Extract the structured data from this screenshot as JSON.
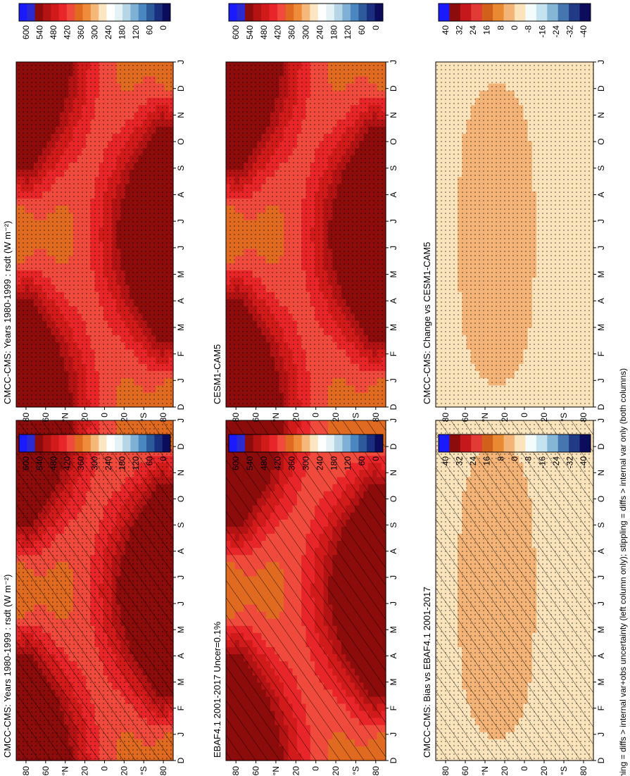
{
  "footer_note": "hatching = diffs > internal var+obs uncertainty (left column only); stippling = diffs > internal var only (both columns)",
  "colors": {
    "climatology_scale": [
      "#0b0d5c",
      "#1b2f80",
      "#2c5a9a",
      "#4a86bf",
      "#7fb1d6",
      "#b4d6e6",
      "#e4f2f6",
      "#ffffff",
      "#fbe6c2",
      "#f5b87a",
      "#ee8c3c",
      "#e06a20",
      "#f04a3c",
      "#e8262a",
      "#d11a1a",
      "#b41314",
      "#8c0c0c",
      "#2a2ad0",
      "#1a1aff"
    ],
    "difference_scale": [
      "#0b0d5c",
      "#213a86",
      "#4576b0",
      "#85b6d6",
      "#c4e3ee",
      "#f4fbfb",
      "#fbe4bc",
      "#f5b477",
      "#e98a32",
      "#d1611a",
      "#e23b36",
      "#c4181c",
      "#8c0c0c",
      "#1a1aff"
    ]
  },
  "chart_data": [
    {
      "type": "heatmap",
      "title": "CMCC-CMS: Years 1980-1999 : rsdt (W m⁻²)",
      "x": [
        "D",
        "J",
        "F",
        "M",
        "A",
        "M",
        "J",
        "J",
        "A",
        "S",
        "O",
        "N",
        "D",
        "J"
      ],
      "y": [
        "80",
        "60",
        "°N",
        "20",
        "0",
        "20",
        "°S",
        "80"
      ],
      "colorbar_ticks": [
        "600",
        "540",
        "480",
        "420",
        "360",
        "300",
        "240",
        "180",
        "120",
        "60",
        "0"
      ],
      "hatching": true,
      "stippling": true
    },
    {
      "type": "heatmap",
      "title": "CMCC-CMS: Years 1980-1999 : rsdt (W m⁻²)",
      "x": [
        "D",
        "J",
        "F",
        "M",
        "A",
        "M",
        "J",
        "J",
        "A",
        "S",
        "O",
        "N",
        "D",
        "J"
      ],
      "y": [
        "80",
        "60",
        "°N",
        "20",
        "0",
        "20",
        "°S",
        "80"
      ],
      "colorbar_ticks": [
        "600",
        "540",
        "480",
        "420",
        "360",
        "300",
        "240",
        "180",
        "120",
        "60",
        "0"
      ],
      "hatching": false,
      "stippling": true
    },
    {
      "type": "heatmap",
      "title": "EBAF4.1 2001-2017 Uncer=0.1%",
      "x": [
        "D",
        "J",
        "F",
        "M",
        "A",
        "M",
        "J",
        "J",
        "A",
        "S",
        "O",
        "N",
        "D",
        "J"
      ],
      "y": [
        "80",
        "60",
        "°N",
        "20",
        "0",
        "20",
        "°S",
        "80"
      ],
      "colorbar_ticks": [
        "600",
        "540",
        "480",
        "420",
        "360",
        "300",
        "240",
        "180",
        "120",
        "60",
        "0"
      ],
      "hatching": true,
      "stippling": false
    },
    {
      "type": "heatmap",
      "title": "CESM1-CAM5",
      "x": [
        "D",
        "J",
        "F",
        "M",
        "A",
        "M",
        "J",
        "J",
        "A",
        "S",
        "O",
        "N",
        "D",
        "J"
      ],
      "y": [
        "80",
        "60",
        "°N",
        "20",
        "0",
        "20",
        "°S",
        "80"
      ],
      "colorbar_ticks": [
        "600",
        "540",
        "480",
        "420",
        "360",
        "300",
        "240",
        "180",
        "120",
        "60",
        "0"
      ],
      "hatching": false,
      "stippling": true
    },
    {
      "type": "heatmap",
      "title": "CMCC-CMS: Bias vs EBAF4.1 2001-2017",
      "x": [
        "D",
        "J",
        "F",
        "M",
        "A",
        "M",
        "J",
        "J",
        "A",
        "S",
        "O",
        "N",
        "D",
        "J"
      ],
      "y": [
        "80",
        "60",
        "°N",
        "20",
        "0",
        "20",
        "°S",
        "80"
      ],
      "colorbar_ticks": [
        "40",
        "32",
        "24",
        "16",
        "8",
        "0",
        "-8",
        "-16",
        "-24",
        "-32",
        "-40"
      ],
      "hatching": true,
      "stippling": true
    },
    {
      "type": "heatmap",
      "title": "CMCC-CMS: Change vs CESM1-CAM5",
      "x": [
        "D",
        "J",
        "F",
        "M",
        "A",
        "M",
        "J",
        "J",
        "A",
        "S",
        "O",
        "N",
        "D",
        "J"
      ],
      "y": [
        "80",
        "60",
        "°N",
        "20",
        "0",
        "20",
        "°S",
        "80"
      ],
      "colorbar_ticks": [
        "40",
        "32",
        "24",
        "16",
        "8",
        "0",
        "-8",
        "-16",
        "-24",
        "-32",
        "-40"
      ],
      "hatching": false,
      "stippling": true
    }
  ]
}
